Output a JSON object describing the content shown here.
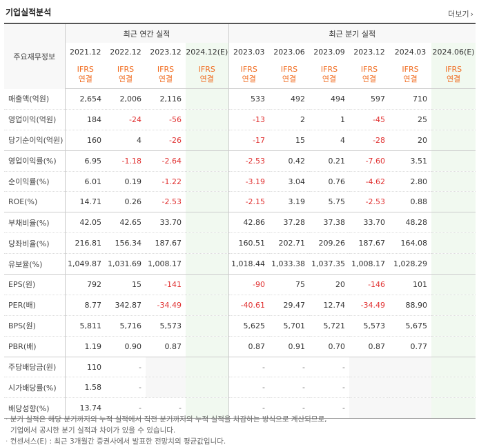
{
  "title": "기업실적분석",
  "more_label": "더보기",
  "row_header": "주요재무정보",
  "annual_label": "최근 연간 실적",
  "quarter_label": "최근 분기 실적",
  "periods": [
    "2021.12",
    "2022.12",
    "2023.12",
    "2024.12(E)",
    "2023.03",
    "2023.06",
    "2023.09",
    "2023.12",
    "2024.03",
    "2024.06(E)"
  ],
  "basis_top": "IFRS",
  "basis_bottom": "연결",
  "rows": [
    {
      "label": "매출액(억원)",
      "values": [
        "2,654",
        "2,006",
        "2,116",
        "",
        "533",
        "492",
        "494",
        "597",
        "710",
        ""
      ]
    },
    {
      "label": "영업이익(억원)",
      "values": [
        "184",
        "-24",
        "-56",
        "",
        "-13",
        "2",
        "1",
        "-45",
        "25",
        ""
      ]
    },
    {
      "label": "당기순이익(억원)",
      "values": [
        "160",
        "4",
        "-26",
        "",
        "-17",
        "15",
        "4",
        "-28",
        "20",
        ""
      ]
    },
    {
      "label": "영업이익률(%)",
      "values": [
        "6.95",
        "-1.18",
        "-2.64",
        "",
        "-2.53",
        "0.42",
        "0.21",
        "-7.60",
        "3.51",
        ""
      ]
    },
    {
      "label": "순이익률(%)",
      "values": [
        "6.01",
        "0.19",
        "-1.22",
        "",
        "-3.19",
        "3.04",
        "0.76",
        "-4.62",
        "2.80",
        ""
      ]
    },
    {
      "label": "ROE(%)",
      "values": [
        "14.71",
        "0.26",
        "-2.53",
        "",
        "-2.15",
        "3.19",
        "5.75",
        "-2.53",
        "0.88",
        ""
      ]
    },
    {
      "label": "부채비율(%)",
      "values": [
        "42.05",
        "42.65",
        "33.70",
        "",
        "42.86",
        "37.28",
        "37.38",
        "33.70",
        "48.28",
        ""
      ]
    },
    {
      "label": "당좌비율(%)",
      "values": [
        "216.81",
        "156.34",
        "187.67",
        "",
        "160.51",
        "202.71",
        "209.26",
        "187.67",
        "164.08",
        ""
      ]
    },
    {
      "label": "유보율(%)",
      "values": [
        "1,049.87",
        "1,031.69",
        "1,008.17",
        "",
        "1,018.44",
        "1,033.38",
        "1,037.35",
        "1,008.17",
        "1,028.29",
        ""
      ]
    },
    {
      "label": "EPS(원)",
      "values": [
        "792",
        "15",
        "-141",
        "",
        "-90",
        "75",
        "20",
        "-146",
        "101",
        ""
      ]
    },
    {
      "label": "PER(배)",
      "values": [
        "8.77",
        "342.87",
        "-34.49",
        "",
        "-40.61",
        "29.47",
        "12.74",
        "-34.49",
        "88.90",
        ""
      ]
    },
    {
      "label": "BPS(원)",
      "values": [
        "5,811",
        "5,716",
        "5,573",
        "",
        "5,625",
        "5,701",
        "5,721",
        "5,573",
        "5,675",
        ""
      ]
    },
    {
      "label": "PBR(배)",
      "values": [
        "1.19",
        "0.90",
        "0.87",
        "",
        "0.87",
        "0.91",
        "0.70",
        "0.87",
        "0.77",
        ""
      ]
    },
    {
      "label": "주당배당금(원)",
      "values": [
        "110",
        "-",
        "",
        "",
        "-",
        "-",
        "-",
        "",
        "",
        ""
      ]
    },
    {
      "label": "시가배당률(%)",
      "values": [
        "1.58",
        "-",
        "",
        "",
        "-",
        "-",
        "-",
        "",
        "",
        ""
      ]
    },
    {
      "label": "배당성향(%)",
      "values": [
        "13.74",
        "-",
        "-",
        "",
        "-",
        "-",
        "-",
        "",
        "",
        ""
      ]
    }
  ],
  "notes": [
    "분기 실적은 해당 분기까지의 누적 실적에서 직전 분기까지의 누적 실적을 차감하는 방식으로 계산되므로,",
    "기업에서 공시한 분기 실적과 차이가 있을 수 있습니다.",
    "컨센서스(E) : 최근 3개월간 증권사에서 발표한 전망치의 평균값입니다."
  ],
  "colors": {
    "accent": "#f06b1f",
    "negative": "#e03030",
    "estimate_bg": "#f1f9f0",
    "estimate_text": "#3a8d3a"
  }
}
